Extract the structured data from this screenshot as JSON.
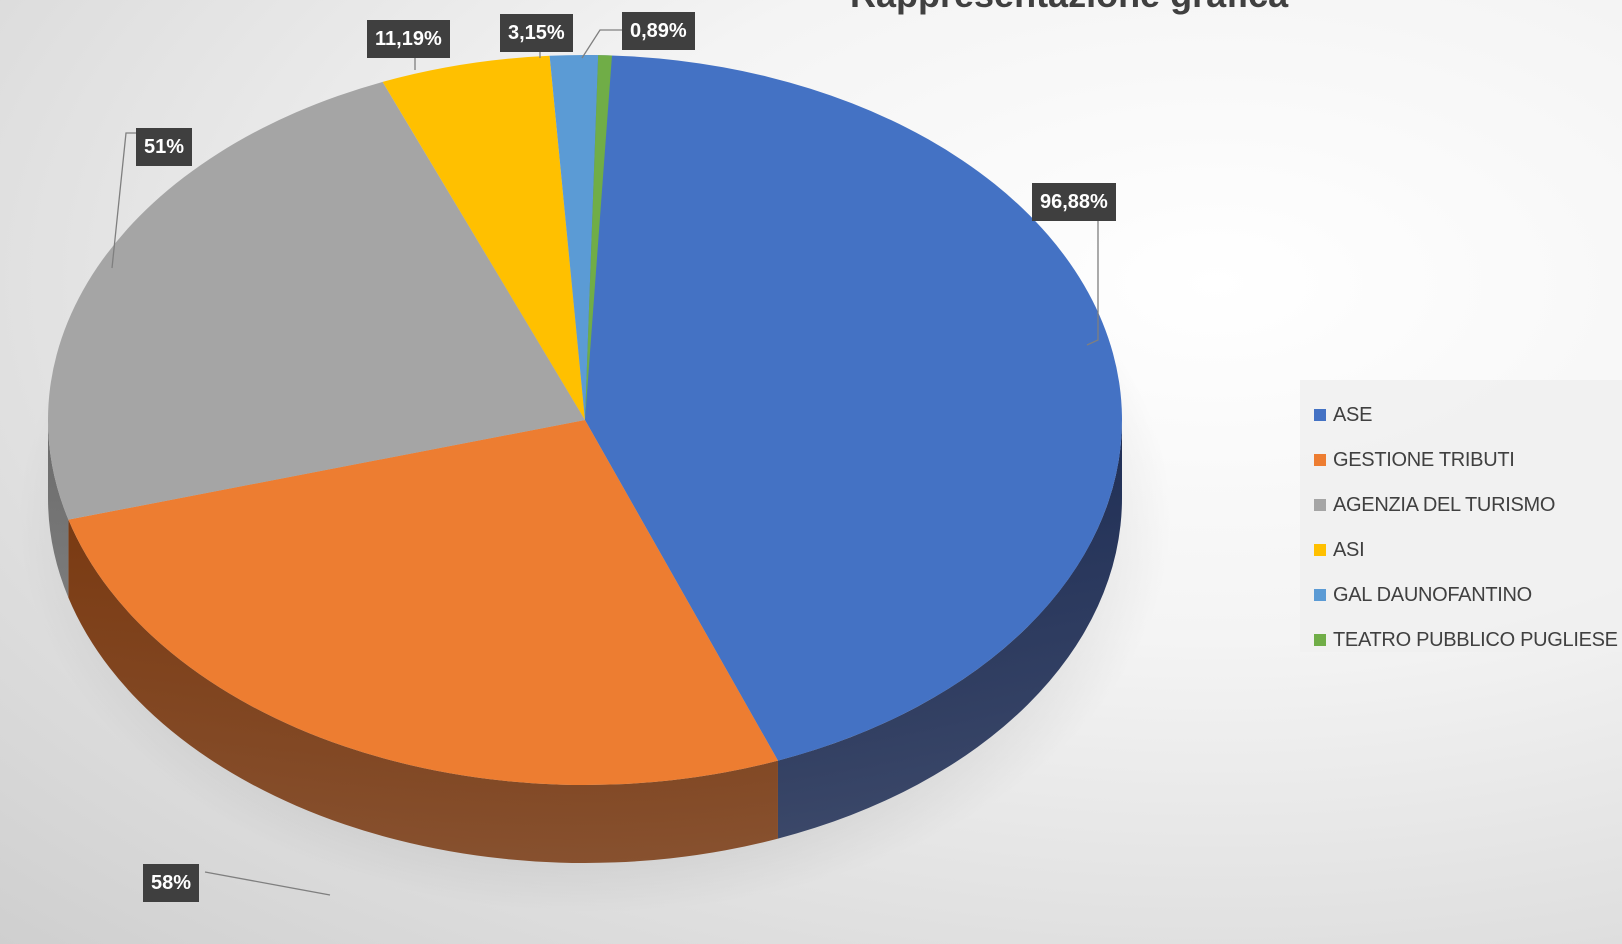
{
  "chart_data": {
    "type": "pie",
    "title": "Rappresentazione grafica",
    "legend_position": "right",
    "three_d": true,
    "series": [
      {
        "name": "ASE",
        "label": "96,88%",
        "share": 0.4415,
        "color": "#4472C4",
        "side_color": "#1F2E55"
      },
      {
        "name": "GESTIONE TRIBUTI",
        "label": "58%",
        "share": 0.2645,
        "color": "#ED7D31",
        "side_color": "#7A3A12"
      },
      {
        "name": "AGENZIA DEL TURISMO",
        "label": "51%",
        "share": 0.2325,
        "color": "#A5A5A5",
        "side_color": "#6B6B6B"
      },
      {
        "name": "ASI",
        "label": "11,19%",
        "share": 0.051,
        "color": "#FFC000",
        "side_color": "#8A6800"
      },
      {
        "name": "GAL DAUNOFANTINO",
        "label": "3,15%",
        "share": 0.0144,
        "color": "#5B9BD5",
        "side_color": "#2E5478"
      },
      {
        "name": "TEATRO PUBBLICO PUGLIESE",
        "label": "0,89%",
        "share": 0.0041,
        "color": "#70AD47",
        "side_color": "#3B5E24"
      }
    ]
  }
}
